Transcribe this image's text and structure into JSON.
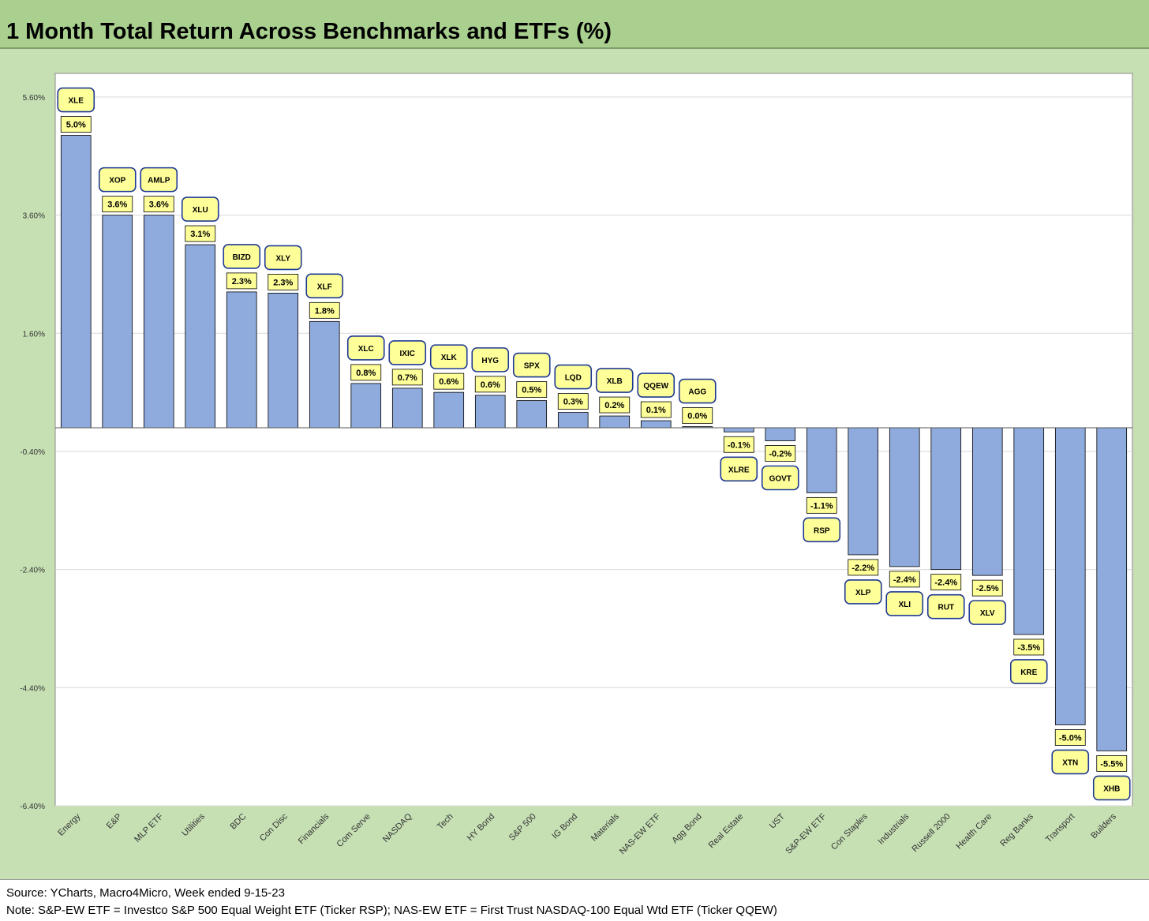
{
  "header": {
    "title": "1 Month Total Return Across Benchmarks and ETFs (%)"
  },
  "footer": {
    "source": "Source: YCharts, Macro4Micro, Week ended 9-15-23",
    "note": "Note: S&P-EW ETF = Investco S&P 500 Equal Weight ETF (Ticker RSP); NAS-EW ETF = First Trust NASDAQ-100 Equal Wtd ETF (Ticker QQEW)"
  },
  "colors": {
    "header_bg": "#a9d08e",
    "chart_bg": "#c6e0b4",
    "bar_fill": "#8faadc",
    "label_fill": "#ffff99",
    "ticker_border": "#1f3a93"
  },
  "chart_data": {
    "type": "bar",
    "title": "1 Month Total Return Across Benchmarks and ETFs (%)",
    "xlabel": "",
    "ylabel": "",
    "ylim": [
      -6.4,
      6.0
    ],
    "yticks": [
      5.6,
      3.6,
      1.6,
      -0.4,
      -2.4,
      -4.4,
      -6.4
    ],
    "ytick_labels": [
      "5.60%",
      "3.60%",
      "1.60%",
      "-0.40%",
      "-2.40%",
      "-4.40%",
      "-6.40%"
    ],
    "grid": true,
    "categories": [
      "Energy",
      "E&P",
      "MLP ETF",
      "Utilities",
      "BDC",
      "Con Disc",
      "Financials",
      "Com Serve",
      "NASDAQ",
      "Tech",
      "HY Bond",
      "S&P 500",
      "IG Bond",
      "Materials",
      "NAS-EW ETF",
      "Agg Bond",
      "Real Estate",
      "UST",
      "S&P-EW ETF",
      "Con Staples",
      "Industrials",
      "Russell 2000",
      "Health Care",
      "Reg Banks",
      "Transport",
      "Builders"
    ],
    "tickers": [
      "XLE",
      "XOP",
      "AMLP",
      "XLU",
      "BIZD",
      "XLY",
      "XLF",
      "XLC",
      "IXIC",
      "XLK",
      "HYG",
      "SPX",
      "LQD",
      "XLB",
      "QQEW",
      "AGG",
      "XLRE",
      "GOVT",
      "RSP",
      "XLP",
      "XLI",
      "RUT",
      "XLV",
      "KRE",
      "XTN",
      "XHB"
    ],
    "values": [
      4.95,
      3.6,
      3.6,
      3.1,
      2.3,
      2.28,
      1.8,
      0.75,
      0.67,
      0.6,
      0.55,
      0.46,
      0.26,
      0.2,
      0.12,
      0.02,
      -0.07,
      -0.22,
      -1.1,
      -2.15,
      -2.35,
      -2.4,
      -2.5,
      -3.5,
      -5.03,
      -5.47
    ],
    "value_labels": [
      "5.0%",
      "3.6%",
      "3.6%",
      "3.1%",
      "2.3%",
      "2.3%",
      "1.8%",
      "0.8%",
      "0.7%",
      "0.6%",
      "0.6%",
      "0.5%",
      "0.3%",
      "0.2%",
      "0.1%",
      "0.0%",
      "-0.1%",
      "-0.2%",
      "-1.1%",
      "-2.2%",
      "-2.4%",
      "-2.4%",
      "-2.5%",
      "-3.5%",
      "-5.0%",
      "-5.5%"
    ]
  }
}
